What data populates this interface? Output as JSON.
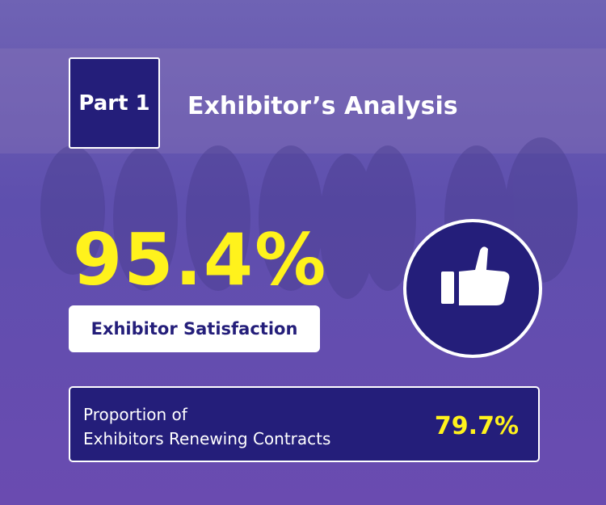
{
  "part": "Part 1",
  "title": "Exhibitor’s Analysis",
  "satisfaction": {
    "value": "95.4%",
    "label": "Exhibitor Satisfaction"
  },
  "renewal": {
    "label": [
      "Proportion of",
      "Exhibitors Renewing Contracts"
    ],
    "value": "79.7%"
  }
}
